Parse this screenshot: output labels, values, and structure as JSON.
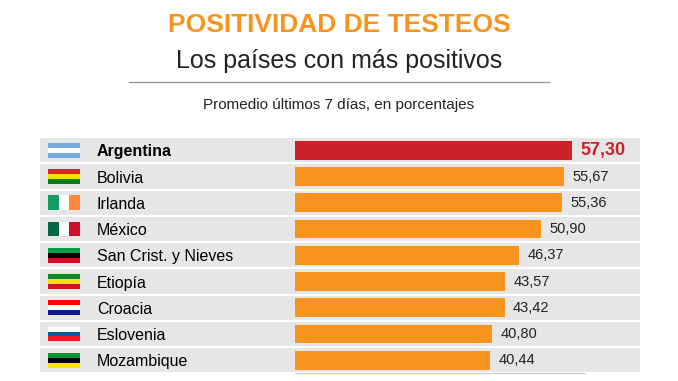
{
  "chart_data": {
    "type": "bar",
    "orientation": "horizontal",
    "title": "POSITIVIDAD DE TESTEOS",
    "subtitle": "Los países con más positivos",
    "annotations": [
      "Promedio últimos 7 días, en porcentajes"
    ],
    "categories": [
      "Argentina",
      "Bolivia",
      "Irlanda",
      "México",
      "San Crist. y Nieves",
      "Etiopía",
      "Croacia",
      "Eslovenia",
      "Mozambique"
    ],
    "values": [
      57.3,
      55.67,
      55.36,
      50.9,
      46.37,
      43.57,
      43.42,
      40.8,
      40.44
    ],
    "value_labels": [
      "57,30",
      "55,67",
      "55,36",
      "50,90",
      "46,37",
      "43,57",
      "43,42",
      "40,80",
      "40,44"
    ],
    "colors": [
      "#cc2229",
      "#f7941d",
      "#f7941d",
      "#f7941d",
      "#f7941d",
      "#f7941d",
      "#f7941d",
      "#f7941d",
      "#f7941d"
    ],
    "xlim": [
      0,
      60
    ],
    "xticks": [],
    "data_labels": true,
    "tick_labels": "y",
    "grid": false
  }
}
